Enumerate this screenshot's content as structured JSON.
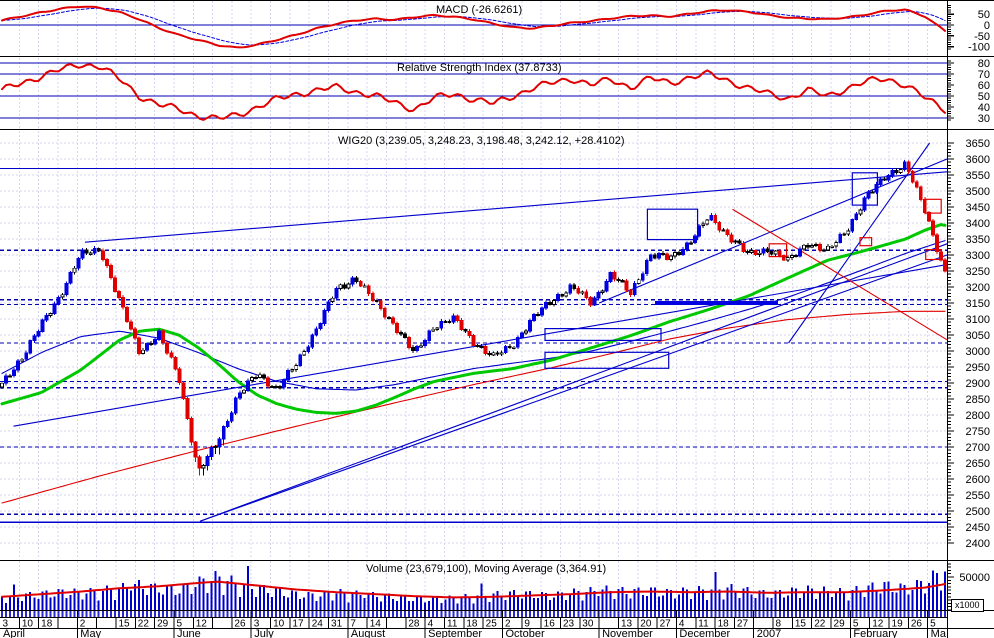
{
  "colors": {
    "red": "#E10000",
    "blue": "#0000E1",
    "navy": "#0000B4",
    "grid": "#D6D6F0",
    "green": "#00C800",
    "black": "#000000",
    "bar": "#0000CD"
  },
  "chart_data": [
    {
      "id": "macd",
      "type": "line",
      "title": "MACD (-26.6261)",
      "last_value": -26.6261,
      "yticks": [
        50,
        0,
        -50,
        -100
      ],
      "zero_line": 0,
      "series": [
        {
          "name": "macd-line",
          "color": "#E10000",
          "weekly": [
            20,
            40,
            60,
            75,
            85,
            80,
            60,
            25,
            -15,
            -45,
            -70,
            -95,
            -105,
            -90,
            -70,
            -45,
            -15,
            5,
            20,
            30,
            25,
            35,
            45,
            40,
            25,
            5,
            -10,
            -15,
            -5,
            10,
            20,
            30,
            40,
            45,
            40,
            50,
            65,
            70,
            60,
            45,
            35,
            30,
            25,
            35,
            50,
            65,
            70,
            40,
            -26.6
          ]
        },
        {
          "name": "signal-line",
          "color": "#0000E1",
          "style": "dashed",
          "derived": "ema-of-macd"
        }
      ]
    },
    {
      "id": "rsi",
      "type": "line",
      "title": "Relative Strength Index (37.8733)",
      "last_value": 37.8733,
      "yticks": [
        80,
        70,
        60,
        50,
        40,
        30
      ],
      "hlines": [
        80,
        70,
        50,
        30
      ],
      "series": [
        {
          "name": "rsi-line",
          "color": "#E10000",
          "weekly": [
            55,
            62,
            68,
            74,
            79,
            77,
            65,
            50,
            42,
            38,
            32,
            29,
            33,
            40,
            47,
            52,
            55,
            58,
            54,
            50,
            44,
            38,
            48,
            52,
            47,
            43,
            50,
            57,
            62,
            66,
            60,
            65,
            58,
            66,
            62,
            67,
            70,
            64,
            57,
            52,
            48,
            55,
            50,
            57,
            63,
            66,
            60,
            48,
            37.9
          ]
        }
      ]
    },
    {
      "id": "price",
      "type": "candlestick",
      "title": "WIG20 (3,239.05, 3,248.23, 3,198.48, 3,242.12, +28.4102)",
      "symbol": "WIG20",
      "ohlc_last": {
        "open": "3,239.05",
        "high": "3,248.23",
        "low": "3,198.48",
        "close": "3,242.12",
        "change": "+28.4102"
      },
      "yaxis": {
        "min": 2400,
        "max": 3650,
        "step": 50
      },
      "weekly_close": [
        2895,
        2980,
        3080,
        3180,
        3300,
        3320,
        3150,
        3000,
        3050,
        2920,
        2620,
        2720,
        2860,
        2930,
        2880,
        2960,
        3070,
        3190,
        3230,
        3150,
        3080,
        2990,
        3080,
        3100,
        3030,
        2980,
        3020,
        3100,
        3160,
        3200,
        3150,
        3240,
        3180,
        3300,
        3290,
        3340,
        3420,
        3360,
        3300,
        3320,
        3280,
        3340,
        3310,
        3380,
        3480,
        3550,
        3580,
        3440,
        3242
      ],
      "ma_green": [
        [
          0,
          2835
        ],
        [
          2,
          2870
        ],
        [
          4,
          2940
        ],
        [
          6,
          3035
        ],
        [
          7,
          3062
        ],
        [
          8,
          3068
        ],
        [
          9,
          3050
        ],
        [
          10,
          3010
        ],
        [
          11,
          2960
        ],
        [
          12,
          2905
        ],
        [
          13,
          2862
        ],
        [
          14,
          2835
        ],
        [
          15,
          2818
        ],
        [
          16,
          2808
        ],
        [
          17,
          2805
        ],
        [
          18,
          2812
        ],
        [
          19,
          2830
        ],
        [
          20,
          2855
        ],
        [
          21,
          2882
        ],
        [
          22,
          2905
        ],
        [
          24,
          2930
        ],
        [
          26,
          2945
        ],
        [
          28,
          2972
        ],
        [
          30,
          3010
        ],
        [
          32,
          3048
        ],
        [
          34,
          3092
        ],
        [
          36,
          3130
        ],
        [
          38,
          3172
        ],
        [
          40,
          3228
        ],
        [
          42,
          3283
        ],
        [
          44,
          3315
        ],
        [
          46,
          3350
        ],
        [
          47,
          3378
        ],
        [
          47.8,
          3395
        ],
        [
          48.4,
          3388
        ],
        [
          49,
          3368
        ]
      ],
      "ma_blue": [
        [
          0,
          2930
        ],
        [
          2,
          2995
        ],
        [
          4,
          3045
        ],
        [
          6,
          3062
        ],
        [
          8,
          3040
        ],
        [
          10,
          2995
        ],
        [
          12,
          2945
        ],
        [
          14,
          2905
        ],
        [
          16,
          2882
        ],
        [
          18,
          2878
        ],
        [
          20,
          2895
        ],
        [
          22,
          2920
        ],
        [
          24,
          2945
        ],
        [
          26,
          2962
        ],
        [
          28,
          2978
        ],
        [
          30,
          3000
        ],
        [
          32,
          3030
        ],
        [
          34,
          3062
        ],
        [
          36,
          3095
        ],
        [
          38,
          3130
        ],
        [
          40,
          3168
        ],
        [
          42,
          3212
        ],
        [
          44,
          3258
        ],
        [
          46,
          3305
        ],
        [
          48,
          3345
        ],
        [
          49,
          3360
        ]
      ],
      "ma_red": [
        [
          0,
          2525
        ],
        [
          5,
          2610
        ],
        [
          10,
          2690
        ],
        [
          15,
          2765
        ],
        [
          20,
          2838
        ],
        [
          24,
          2895
        ],
        [
          28,
          2948
        ],
        [
          31,
          2992
        ],
        [
          34,
          3038
        ],
        [
          37,
          3072
        ],
        [
          40,
          3098
        ],
        [
          43,
          3114
        ],
        [
          46,
          3124
        ],
        [
          48,
          3124
        ],
        [
          49,
          3118
        ]
      ],
      "hlines_solid": [
        3570,
        2465
      ],
      "hlines_dashed": [
        3315,
        3160,
        3145,
        3025,
        2905,
        2885,
        2700,
        2490
      ],
      "thick_support": {
        "w1": 33.9,
        "w2": 40.25,
        "level": 3150
      },
      "trendlines": [
        {
          "w1": 4.4,
          "v1": 3340,
          "w2": 49,
          "v2": 3560,
          "color": "blue"
        },
        {
          "w1": 0.7,
          "v1": 2765,
          "w2": 49,
          "v2": 3270,
          "color": "blue"
        },
        {
          "w1": 10.35,
          "v1": 2468,
          "w2": 49,
          "v2": 3300,
          "color": "blue"
        },
        {
          "w1": 10.35,
          "v1": 2468,
          "w2": 49,
          "v2": 3335,
          "color": "blue"
        },
        {
          "w1": 40.8,
          "v1": 3025,
          "w2": 48.1,
          "v2": 3650,
          "color": "blue"
        },
        {
          "w1": 31,
          "v1": 3150,
          "w2": 49,
          "v2": 3600,
          "color": "blue"
        },
        {
          "w1": 37.9,
          "v1": 3443,
          "w2": 49,
          "v2": 3035,
          "color": "red"
        }
      ],
      "boxes": [
        {
          "w1": 33.5,
          "w2": 36.1,
          "v1": 3348,
          "v2": 3443,
          "color": "blue"
        },
        {
          "w1": 44.1,
          "w2": 45.4,
          "v1": 3456,
          "v2": 3557,
          "color": "blue"
        },
        {
          "w1": 28.2,
          "w2": 34.2,
          "v1": 3033,
          "v2": 3070,
          "color": "blue"
        },
        {
          "w1": 28.2,
          "w2": 34.6,
          "v1": 2946,
          "v2": 2996,
          "color": "blue"
        },
        {
          "w1": 39.8,
          "w2": 40.7,
          "v1": 3295,
          "v2": 3335,
          "color": "red"
        },
        {
          "w1": 44.5,
          "w2": 45.1,
          "v1": 3329,
          "v2": 3354,
          "color": "red"
        },
        {
          "w1": 47.9,
          "w2": 48.7,
          "v1": 3431,
          "v2": 3474,
          "color": "red"
        },
        {
          "w1": 47.9,
          "w2": 48.7,
          "v1": 3286,
          "v2": 3317,
          "color": "red"
        }
      ]
    },
    {
      "id": "volume",
      "type": "bar",
      "title": "Volume (23,679,100), Moving Average (3,364.91)",
      "ytick_label": "50000",
      "unit_label": "x1000",
      "weekly_volume": [
        18,
        20,
        22,
        25,
        24,
        26,
        30,
        34,
        30,
        28,
        38,
        45,
        36,
        30,
        26,
        22,
        20,
        24,
        22,
        20,
        18,
        16,
        15,
        17,
        19,
        21,
        23,
        22,
        20,
        24,
        26,
        28,
        25,
        27,
        24,
        26,
        28,
        30,
        26,
        22,
        25,
        28,
        26,
        24,
        30,
        34,
        30,
        38,
        55
      ],
      "ma_keyframes": [
        [
          0,
          20
        ],
        [
          2,
          24
        ],
        [
          4,
          28
        ],
        [
          6,
          33
        ],
        [
          8,
          36
        ],
        [
          10,
          41
        ],
        [
          11,
          43
        ],
        [
          13,
          37
        ],
        [
          15,
          31
        ],
        [
          17,
          27
        ],
        [
          19,
          24
        ],
        [
          21,
          21
        ],
        [
          23,
          19
        ],
        [
          25,
          20
        ],
        [
          27,
          22
        ],
        [
          29,
          24
        ],
        [
          31,
          27
        ],
        [
          33,
          28
        ],
        [
          35,
          27
        ],
        [
          37,
          28
        ],
        [
          39,
          26
        ],
        [
          41,
          27
        ],
        [
          43,
          27
        ],
        [
          45,
          30
        ],
        [
          47,
          34
        ],
        [
          48.5,
          42
        ],
        [
          49,
          45
        ]
      ]
    }
  ],
  "xaxis": {
    "months": [
      {
        "label": "April",
        "days": [
          "3",
          "10",
          "18",
          ""
        ]
      },
      {
        "label": "May",
        "days": [
          "2",
          "",
          "15",
          "22",
          "29"
        ]
      },
      {
        "label": "June",
        "days": [
          "5",
          "12",
          "",
          "26"
        ]
      },
      {
        "label": "July",
        "days": [
          "3",
          "10",
          "17",
          "24",
          "31"
        ]
      },
      {
        "label": "August",
        "days": [
          "7",
          "14",
          "",
          "28"
        ]
      },
      {
        "label": "September",
        "days": [
          "4",
          "11",
          "18",
          "25"
        ]
      },
      {
        "label": "October",
        "days": [
          "2",
          "9",
          "16",
          "23",
          "30"
        ]
      },
      {
        "label": "November",
        "days": [
          "",
          "13",
          "20",
          "27"
        ]
      },
      {
        "label": "December",
        "days": [
          "4",
          "11",
          "18",
          "27"
        ]
      },
      {
        "label": "2007",
        "days": [
          "",
          "8",
          "15",
          "22",
          "29"
        ]
      },
      {
        "label": "February",
        "days": [
          "5",
          "12",
          "19",
          "26"
        ]
      },
      {
        "label": "Ma",
        "days": [
          "5"
        ]
      }
    ]
  }
}
